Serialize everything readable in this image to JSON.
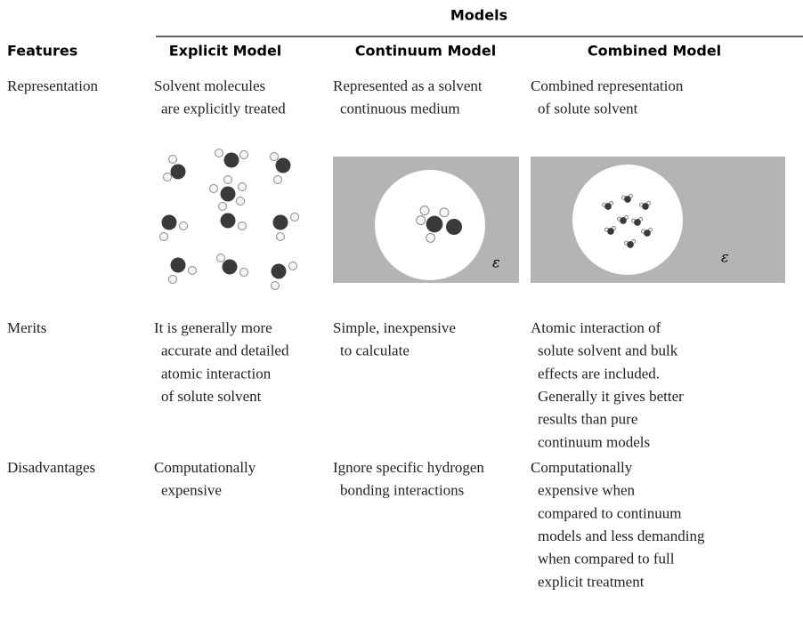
{
  "header": {
    "group_title": "Models",
    "columns": [
      "Features",
      "Explicit Model",
      "Continuum Model",
      "Combined Model"
    ]
  },
  "rows": [
    {
      "feature": "Representation",
      "cells": [
        [
          "Solvent molecules",
          "are explicitly treated"
        ],
        [
          "Represented as a solvent",
          "continuous medium"
        ],
        [
          "Combined representation",
          "of solute solvent"
        ]
      ]
    },
    {
      "feature": "Merits",
      "cells": [
        [
          "It is generally more",
          "accurate and detailed",
          "atomic interaction",
          "of solute solvent"
        ],
        [
          "Simple, inexpensive",
          "to calculate"
        ],
        [
          "Atomic interaction of",
          "solute solvent and bulk",
          "effects are included.",
          "Generally it gives better",
          "results than pure",
          "continuum models"
        ]
      ]
    },
    {
      "feature": "Disadvantages",
      "cells": [
        [
          "Computationally",
          "expensive"
        ],
        [
          "Ignore specific hydrogen",
          "bonding interactions"
        ],
        [
          "Computationally",
          "expensive when",
          "compared to continuum",
          "models and less demanding",
          "when compared to full",
          "explicit treatment"
        ]
      ]
    }
  ],
  "figure_labels": {
    "continuum": "ε",
    "combined": "ε"
  }
}
